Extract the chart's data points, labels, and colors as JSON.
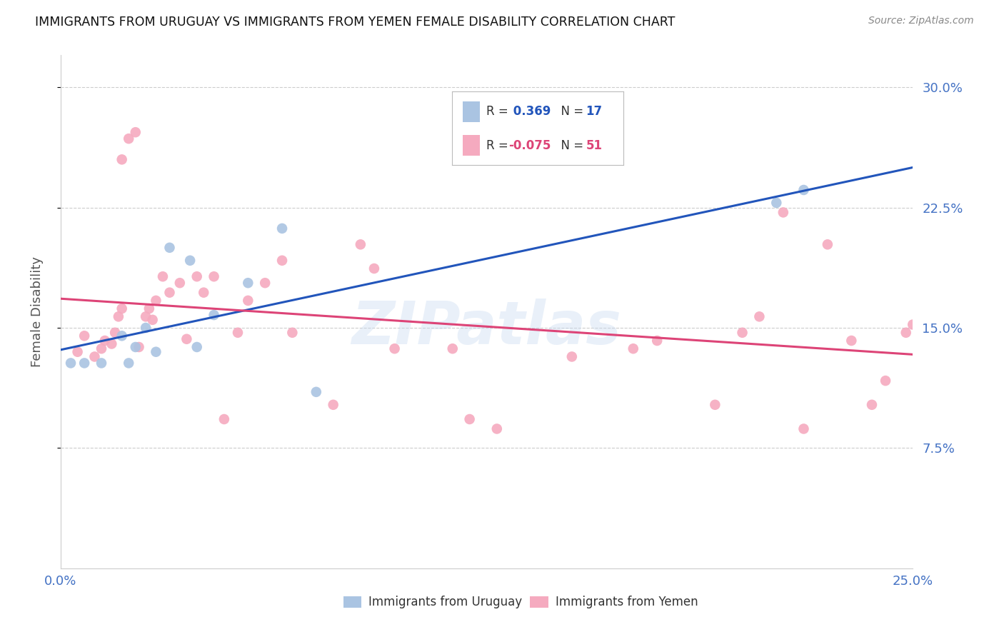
{
  "title": "IMMIGRANTS FROM URUGUAY VS IMMIGRANTS FROM YEMEN FEMALE DISABILITY CORRELATION CHART",
  "source": "Source: ZipAtlas.com",
  "ylabel": "Female Disability",
  "xlim": [
    0.0,
    0.25
  ],
  "ylim": [
    0.0,
    0.32
  ],
  "yticks": [
    0.075,
    0.15,
    0.225,
    0.3
  ],
  "ytick_labels": [
    "7.5%",
    "15.0%",
    "22.5%",
    "30.0%"
  ],
  "xticks": [
    0.0,
    0.05,
    0.1,
    0.15,
    0.2,
    0.25
  ],
  "xtick_labels": [
    "0.0%",
    "",
    "",
    "",
    "",
    "25.0%"
  ],
  "uruguay_R": 0.369,
  "uruguay_N": 17,
  "yemen_R": -0.075,
  "yemen_N": 51,
  "uruguay_color": "#aac4e2",
  "yemen_color": "#f5aabf",
  "uruguay_line_color": "#2255bb",
  "yemen_line_color": "#dd4477",
  "background_color": "#ffffff",
  "watermark": "ZIPatlas",
  "uruguay_x": [
    0.003,
    0.007,
    0.012,
    0.018,
    0.02,
    0.022,
    0.025,
    0.028,
    0.032,
    0.038,
    0.04,
    0.045,
    0.055,
    0.065,
    0.075,
    0.21,
    0.218
  ],
  "uruguay_y": [
    0.128,
    0.128,
    0.128,
    0.145,
    0.128,
    0.138,
    0.15,
    0.135,
    0.2,
    0.192,
    0.138,
    0.158,
    0.178,
    0.212,
    0.11,
    0.228,
    0.236
  ],
  "yemen_x": [
    0.005,
    0.007,
    0.01,
    0.012,
    0.013,
    0.015,
    0.016,
    0.017,
    0.018,
    0.018,
    0.02,
    0.022,
    0.023,
    0.025,
    0.026,
    0.027,
    0.028,
    0.03,
    0.032,
    0.035,
    0.037,
    0.04,
    0.042,
    0.045,
    0.048,
    0.052,
    0.055,
    0.06,
    0.065,
    0.068,
    0.08,
    0.088,
    0.092,
    0.098,
    0.115,
    0.12,
    0.128,
    0.15,
    0.168,
    0.175,
    0.192,
    0.2,
    0.205,
    0.212,
    0.218,
    0.225,
    0.232,
    0.238,
    0.242,
    0.248,
    0.25
  ],
  "yemen_y": [
    0.135,
    0.145,
    0.132,
    0.137,
    0.142,
    0.14,
    0.147,
    0.157,
    0.162,
    0.255,
    0.268,
    0.272,
    0.138,
    0.157,
    0.162,
    0.155,
    0.167,
    0.182,
    0.172,
    0.178,
    0.143,
    0.182,
    0.172,
    0.182,
    0.093,
    0.147,
    0.167,
    0.178,
    0.192,
    0.147,
    0.102,
    0.202,
    0.187,
    0.137,
    0.137,
    0.093,
    0.087,
    0.132,
    0.137,
    0.142,
    0.102,
    0.147,
    0.157,
    0.222,
    0.087,
    0.202,
    0.142,
    0.102,
    0.117,
    0.147,
    0.152
  ]
}
